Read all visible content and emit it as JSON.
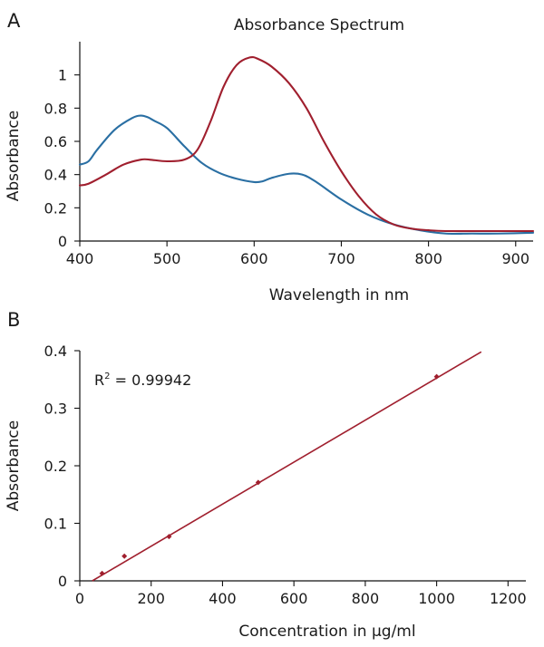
{
  "chart_data": [
    {
      "panel": "A",
      "type": "line",
      "title": "Absorbance Spectrum",
      "xlabel": "Wavelength in nm",
      "ylabel": "Absorbance",
      "xlim": [
        400,
        920
      ],
      "ylim": [
        0,
        1.2
      ],
      "xticks": [
        400,
        500,
        600,
        700,
        800,
        900
      ],
      "yticks": [
        0,
        0.2,
        0.4,
        0.6,
        0.8,
        1
      ],
      "ytick_labels": [
        "0",
        "0.2",
        "0.4",
        "0.6",
        "0.8",
        "1"
      ],
      "grid": false,
      "series": [
        {
          "color": "#2a6fa3",
          "x": [
            400,
            410,
            420,
            440,
            460,
            470,
            478,
            485,
            500,
            520,
            540,
            560,
            580,
            600,
            610,
            620,
            640,
            655,
            670,
            700,
            730,
            760,
            790,
            820,
            850,
            880,
            920
          ],
          "y": [
            0.46,
            0.48,
            0.55,
            0.67,
            0.74,
            0.755,
            0.745,
            0.725,
            0.68,
            0.57,
            0.47,
            0.41,
            0.375,
            0.355,
            0.36,
            0.38,
            0.405,
            0.4,
            0.36,
            0.25,
            0.16,
            0.1,
            0.065,
            0.045,
            0.045,
            0.045,
            0.05
          ]
        },
        {
          "color": "#a01f2e",
          "x": [
            400,
            410,
            430,
            450,
            470,
            480,
            500,
            520,
            535,
            550,
            565,
            580,
            595,
            605,
            620,
            640,
            660,
            680,
            700,
            720,
            740,
            760,
            780,
            800,
            820,
            860,
            920
          ],
          "y": [
            0.335,
            0.345,
            0.4,
            0.46,
            0.49,
            0.49,
            0.48,
            0.49,
            0.55,
            0.72,
            0.93,
            1.06,
            1.105,
            1.095,
            1.05,
            0.95,
            0.8,
            0.6,
            0.42,
            0.27,
            0.16,
            0.1,
            0.075,
            0.065,
            0.06,
            0.06,
            0.06
          ]
        }
      ]
    },
    {
      "panel": "B",
      "type": "scatter",
      "xlabel": "Concentration in µg/ml",
      "ylabel": "Absorbance",
      "xlim": [
        0,
        1250
      ],
      "ylim": [
        0,
        0.4
      ],
      "xticks": [
        0,
        200,
        400,
        600,
        800,
        1000,
        1200
      ],
      "yticks": [
        0,
        0.1,
        0.2,
        0.3,
        0.4
      ],
      "ytick_labels": [
        "0",
        "0.1",
        "0.2",
        "0.3",
        "0.4"
      ],
      "grid": false,
      "annotation": {
        "r_symbol": "R",
        "exponent": "2",
        "value_text": " = 0.99942"
      },
      "points": {
        "color": "#a01f2e",
        "x": [
          62.5,
          125,
          250,
          500,
          1000
        ],
        "y": [
          0.013,
          0.043,
          0.077,
          0.171,
          0.355
        ]
      },
      "fit_line": {
        "color": "#a01f2e",
        "x": [
          35,
          1125
        ],
        "y": [
          0.0,
          0.398
        ]
      }
    }
  ]
}
